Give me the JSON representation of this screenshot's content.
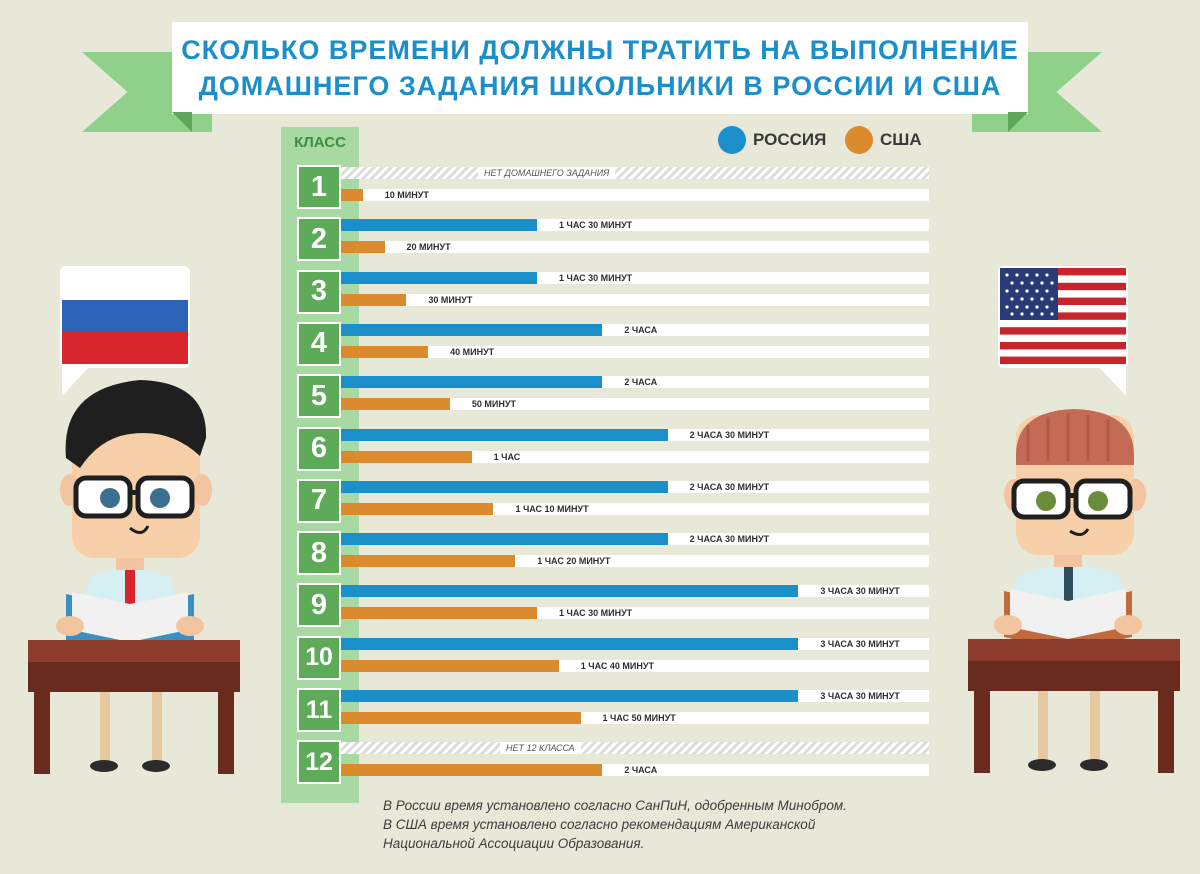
{
  "title": {
    "line1": "СКОЛЬКО ВРЕМЕНИ ДОЛЖНЫ ТРАТИТЬ НА ВЫПОЛНЕНИЕ",
    "line2": "ДОМАШНЕГО ЗАДАНИЯ ШКОЛЬНИКИ В РОССИИ И США"
  },
  "class_header": "КЛАСС",
  "legend": {
    "russia": "РОССИЯ",
    "usa": "США"
  },
  "colors": {
    "russia": "#1b8fc9",
    "usa": "#dc8a2e",
    "class": "#5daa58"
  },
  "chart_data": {
    "type": "bar",
    "orientation": "horizontal",
    "unit": "minutes",
    "xlim": [
      0,
      270
    ],
    "categories": [
      "1",
      "2",
      "3",
      "4",
      "5",
      "6",
      "7",
      "8",
      "9",
      "10",
      "11",
      "12"
    ],
    "series": [
      {
        "name": "РОССИЯ",
        "values": [
          null,
          90,
          90,
          120,
          120,
          150,
          150,
          150,
          210,
          210,
          210,
          null
        ],
        "labels": [
          "НЕТ ДОМАШНЕГО ЗАДАНИЯ",
          "1 ЧАС 30 МИНУТ",
          "1 ЧАС 30 МИНУТ",
          "2 ЧАСА",
          "2 ЧАСА",
          "2 ЧАСА 30 МИНУТ",
          "2 ЧАСА 30 МИНУТ",
          "2 ЧАСА 30 МИНУТ",
          "3 ЧАСА 30 МИНУТ",
          "3 ЧАСА 30 МИНУТ",
          "3 ЧАСА 30 МИНУТ",
          "НЕТ 12 КЛАССА"
        ]
      },
      {
        "name": "США",
        "values": [
          10,
          20,
          30,
          40,
          50,
          60,
          70,
          80,
          90,
          100,
          110,
          120
        ],
        "labels": [
          "10 МИНУТ",
          "20 МИНУТ",
          "30 МИНУТ",
          "40 МИНУТ",
          "50 МИНУТ",
          "1 ЧАС",
          "1 ЧАС 10 МИНУТ",
          "1 ЧАС 20 МИНУТ",
          "1 ЧАС 30 МИНУТ",
          "1 ЧАС 40 МИНУТ",
          "1 ЧАС 50 МИНУТ",
          "2 ЧАСА"
        ]
      }
    ]
  },
  "footnote": [
    "В России время установлено согласно СанПиН, одобренным Минобром.",
    "В США время установлено согласно рекомендациям Американской",
    "Национальной Ассоциации Образования."
  ],
  "illustrations": {
    "left": {
      "flag": "russian-flag",
      "character": "russian-student"
    },
    "right": {
      "flag": "usa-flag",
      "character": "american-student"
    }
  }
}
